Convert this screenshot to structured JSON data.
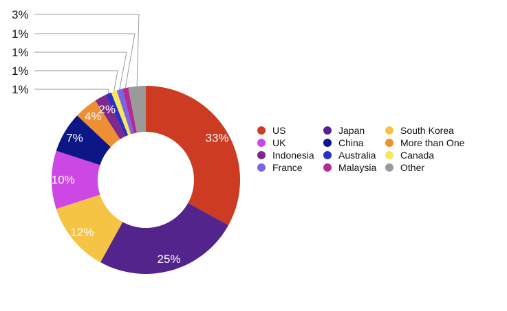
{
  "chart_data": {
    "type": "pie",
    "donut": true,
    "title": "",
    "legend_position": "right",
    "slices": [
      {
        "label": "US",
        "value": 33,
        "display": "33%",
        "color": "#cc3b22"
      },
      {
        "label": "Japan",
        "value": 25,
        "display": "25%",
        "color": "#54248d"
      },
      {
        "label": "South Korea",
        "value": 12,
        "display": "12%",
        "color": "#f6c445"
      },
      {
        "label": "UK",
        "value": 10,
        "display": "10%",
        "color": "#cd47e4"
      },
      {
        "label": "China",
        "value": 7,
        "display": "7%",
        "color": "#0c1785"
      },
      {
        "label": "More than One",
        "value": 4,
        "display": "4%",
        "color": "#ef8f33"
      },
      {
        "label": "Indonesia",
        "value": 2,
        "display": "2%",
        "color": "#7d2a8a"
      },
      {
        "label": "Australia",
        "value": 1,
        "display": "1%",
        "color": "#2b2fc8"
      },
      {
        "label": "Canada",
        "value": 1,
        "display": "1%",
        "color": "#f7e75a"
      },
      {
        "label": "France",
        "value": 1,
        "display": "1%",
        "color": "#7c64e6"
      },
      {
        "label": "Malaysia",
        "value": 1,
        "display": "1%",
        "color": "#b42c93"
      },
      {
        "label": "Other",
        "value": 3,
        "display": "3%",
        "color": "#9a9a9a"
      }
    ]
  },
  "legend_order": [
    "US",
    "UK",
    "Indonesia",
    "France",
    "Japan",
    "China",
    "Australia",
    "Malaysia",
    "South Korea",
    "More than One",
    "Canada",
    "Other"
  ]
}
